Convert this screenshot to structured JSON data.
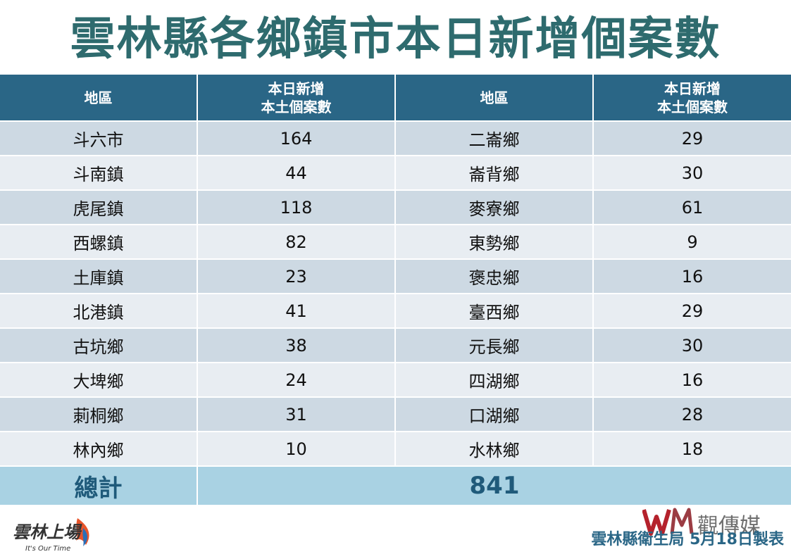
{
  "title": "雲林縣各鄉鎮市本日新增個案數",
  "table": {
    "headers": [
      {
        "line1": "地區",
        "line2": ""
      },
      {
        "line1": "本日新增",
        "line2": "本土個案數"
      },
      {
        "line1": "地區",
        "line2": ""
      },
      {
        "line1": "本日新增",
        "line2": "本土個案數"
      }
    ],
    "rows": [
      [
        "斗六市",
        "164",
        "二崙鄉",
        "29"
      ],
      [
        "斗南鎮",
        "44",
        "崙背鄉",
        "30"
      ],
      [
        "虎尾鎮",
        "118",
        "麥寮鄉",
        "61"
      ],
      [
        "西螺鎮",
        "82",
        "東勢鄉",
        "9"
      ],
      [
        "土庫鎮",
        "23",
        "褒忠鄉",
        "16"
      ],
      [
        "北港鎮",
        "41",
        "臺西鄉",
        "29"
      ],
      [
        "古坑鄉",
        "38",
        "元長鄉",
        "30"
      ],
      [
        "大埤鄉",
        "24",
        "四湖鄉",
        "16"
      ],
      [
        "莿桐鄉",
        "31",
        "口湖鄉",
        "28"
      ],
      [
        "林內鄉",
        "10",
        "水林鄉",
        "18"
      ]
    ],
    "total_label": "總計",
    "total_value": "841"
  },
  "logo": {
    "text": "雲林上場",
    "tagline": "It's Our Time"
  },
  "watermark": {
    "mark": "WM",
    "text": "觀傳媒"
  },
  "footer": {
    "credit": "雲林縣衛生局 5月18日製表"
  },
  "colors": {
    "title": "#2e6b6e",
    "header_bg": "#2a6686",
    "row_odd": "#cdd9e3",
    "row_even": "#e8edf2",
    "total_bg": "#a9d2e3",
    "total_text": "#1f5a7a"
  }
}
